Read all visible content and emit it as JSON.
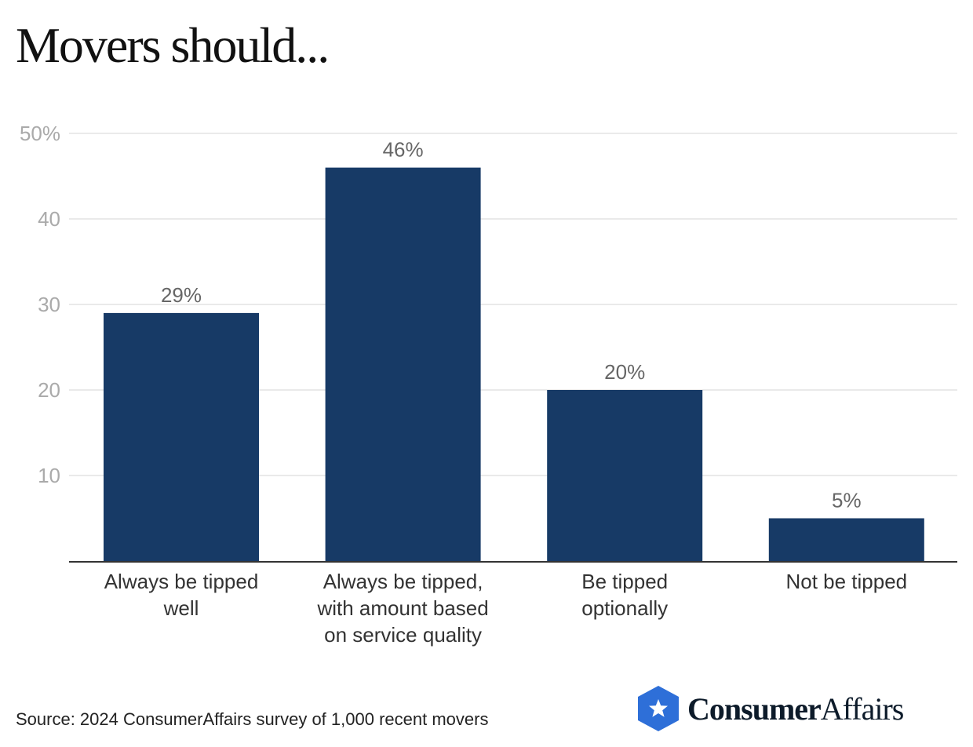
{
  "title": "Movers should...",
  "source": "Source: 2024 ConsumerAffairs survey of 1,000 recent movers",
  "logo": {
    "icon": "star-badge-icon",
    "word_strong": "Consumer",
    "word_light": "Affairs",
    "color": "#2e6fd8"
  },
  "colors": {
    "bar": "#173a66",
    "grid": "#e3e3e3",
    "axis": "#333333"
  },
  "chart_data": {
    "type": "bar",
    "title": "Movers should...",
    "xlabel": "",
    "ylabel": "",
    "categories": [
      [
        "Always be tipped",
        "well"
      ],
      [
        "Always be tipped,",
        "with amount based",
        "on service quality"
      ],
      [
        "Be tipped",
        "optionally"
      ],
      [
        "Not be tipped"
      ]
    ],
    "values": [
      29,
      46,
      20,
      5
    ],
    "data_labels": [
      "29%",
      "46%",
      "20%",
      "5%"
    ],
    "ylim": [
      0,
      50
    ],
    "yticks": [
      10,
      20,
      30,
      40,
      50
    ],
    "ytick_labels": [
      "10",
      "20",
      "30",
      "40",
      "50%"
    ],
    "grid": true,
    "legend": "none"
  }
}
